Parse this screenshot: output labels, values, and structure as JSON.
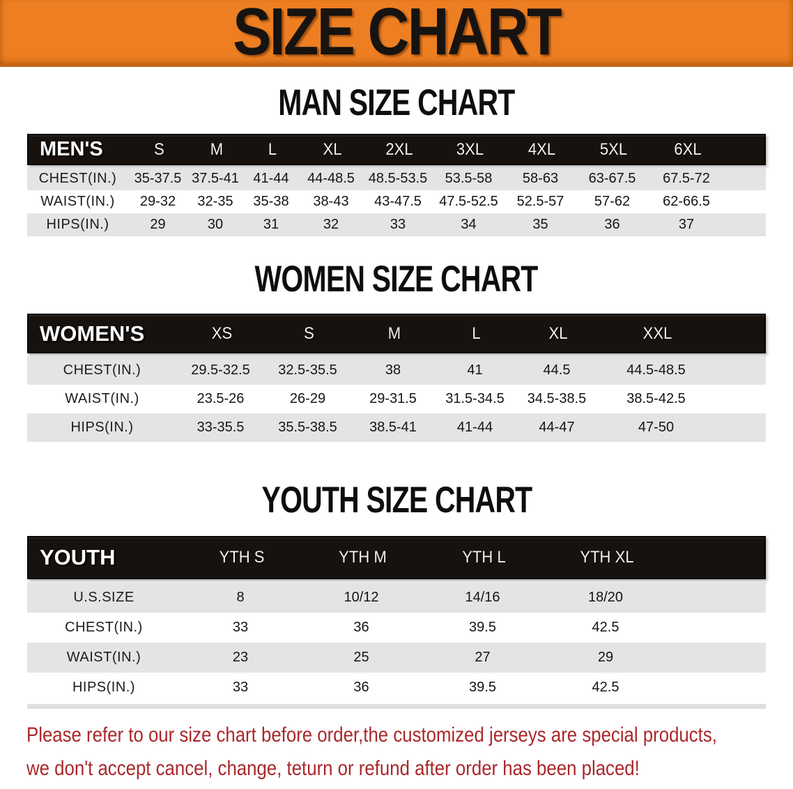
{
  "colors": {
    "banner_bg": "#ED7E22",
    "banner_border": "#C2671B",
    "header_bar_bg": "#18120E",
    "row_stripe": "#E4E4E4",
    "disclaimer_text": "#A9282B"
  },
  "banner": {
    "title": "SIZE CHART"
  },
  "sections": {
    "men": {
      "heading": "MAN SIZE CHART",
      "header_label": "MEN'S",
      "sizes": [
        "S",
        "M",
        "L",
        "XL",
        "2XL",
        "3XL",
        "4XL",
        "5XL",
        "6XL"
      ],
      "rows": [
        {
          "label": "CHEST(IN.)",
          "values": [
            "35-37.5",
            "37.5-41",
            "41-44",
            "44-48.5",
            "48.5-53.5",
            "53.5-58",
            "58-63",
            "63-67.5",
            "67.5-72"
          ]
        },
        {
          "label": "WAIST(IN.)",
          "values": [
            "29-32",
            "32-35",
            "35-38",
            "38-43",
            "43-47.5",
            "47.5-52.5",
            "52.5-57",
            "57-62",
            "62-66.5"
          ]
        },
        {
          "label": "HIPS(IN.)",
          "values": [
            "29",
            "30",
            "31",
            "32",
            "33",
            "34",
            "35",
            "36",
            "37"
          ]
        }
      ]
    },
    "women": {
      "heading": "WOMEN SIZE CHART",
      "header_label": "WOMEN'S",
      "sizes": [
        "XS",
        "S",
        "M",
        "L",
        "XL",
        "XXL"
      ],
      "rows": [
        {
          "label": "CHEST(IN.)",
          "values": [
            "29.5-32.5",
            "32.5-35.5",
            "38",
            "41",
            "44.5",
            "44.5-48.5"
          ]
        },
        {
          "label": "WAIST(IN.)",
          "values": [
            "23.5-26",
            "26-29",
            "29-31.5",
            "31.5-34.5",
            "34.5-38.5",
            "38.5-42.5"
          ]
        },
        {
          "label": "HIPS(IN.)",
          "values": [
            "33-35.5",
            "35.5-38.5",
            "38.5-41",
            "41-44",
            "44-47",
            "47-50"
          ]
        }
      ]
    },
    "youth": {
      "heading": "YOUTH SIZE CHART",
      "header_label": "YOUTH",
      "sizes": [
        "YTH S",
        "YTH M",
        "YTH L",
        "YTH XL"
      ],
      "rows": [
        {
          "label": "U.S.SIZE",
          "values": [
            "8",
            "10/12",
            "14/16",
            "18/20"
          ]
        },
        {
          "label": "CHEST(IN.)",
          "values": [
            "33",
            "36",
            "39.5",
            "42.5"
          ]
        },
        {
          "label": "WAIST(IN.)",
          "values": [
            "23",
            "25",
            "27",
            "29"
          ]
        },
        {
          "label": "HIPS(IN.)",
          "values": [
            "33",
            "36",
            "39.5",
            "42.5"
          ]
        }
      ]
    }
  },
  "disclaimer": {
    "line1": "Please refer to our size chart before order,the customized jerseys are special products,",
    "line2": "we don't accept cancel, change, teturn or refund after order has been placed!"
  }
}
